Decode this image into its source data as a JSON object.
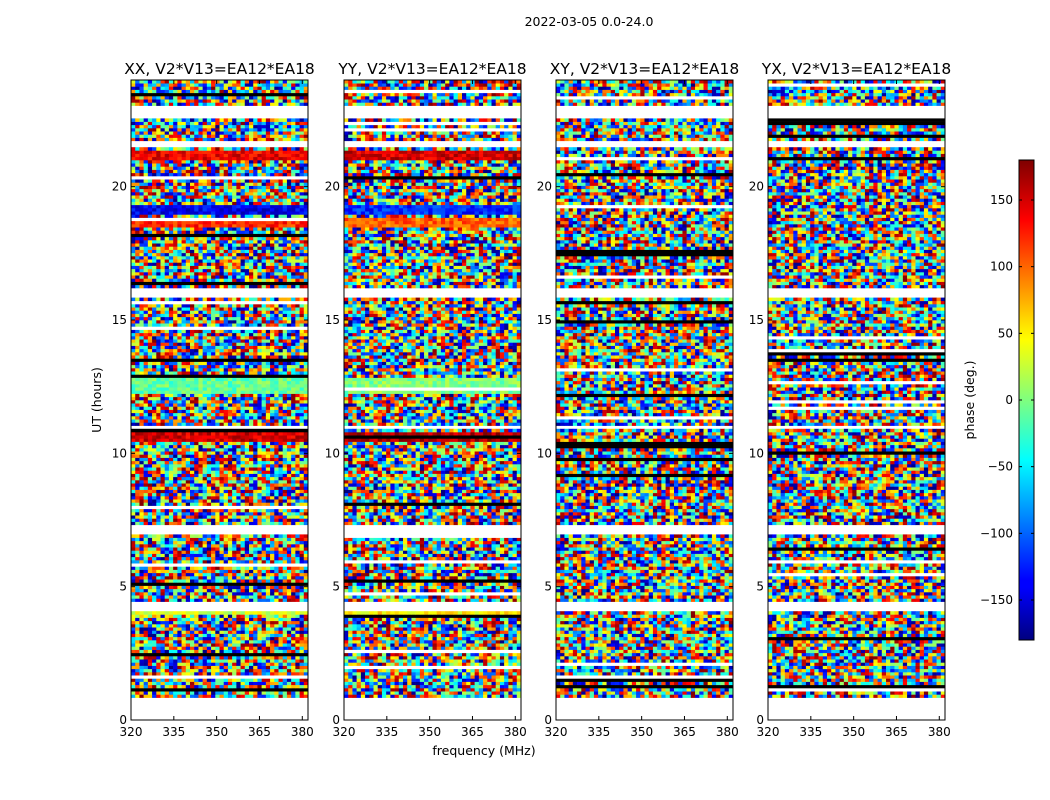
{
  "chart_data": {
    "type": "heatmap",
    "suptitle": "2022-03-05 0.0-24.0",
    "xlabel": "frequency (MHz)",
    "ylabel": "UT (hours)",
    "xlim": [
      320,
      382
    ],
    "ylim": [
      0,
      24
    ],
    "xticks": [
      "320",
      "335",
      "350",
      "365",
      "380"
    ],
    "yticks": [
      "0",
      "5",
      "10",
      "15",
      "20"
    ],
    "panels": [
      {
        "title": "XX, V2*V13=EA12*EA18"
      },
      {
        "title": "YY, V2*V13=EA12*EA18"
      },
      {
        "title": "XY, V2*V13=EA12*EA18"
      },
      {
        "title": "YX, V2*V13=EA12*EA18"
      }
    ],
    "colorbar": {
      "label": "phase (deg.)",
      "range": [
        -180,
        180
      ],
      "ticks": [
        "150",
        "100",
        "50",
        "0",
        "−50",
        "−100",
        "−150"
      ],
      "colormap": "jet"
    },
    "data_gaps_ut_hours": [
      [
        0.0,
        0.8
      ],
      [
        4.1,
        4.4
      ],
      [
        7.0,
        7.3
      ],
      [
        10.9,
        11.1
      ],
      [
        15.9,
        16.2
      ],
      [
        21.5,
        21.7
      ],
      [
        22.6,
        23.0
      ]
    ],
    "coherent_bands_ut_hours": {
      "XX": [
        [
          21.0,
          21.3,
          140
        ],
        [
          19.0,
          19.3,
          -140
        ],
        [
          18.5,
          18.8,
          120
        ],
        [
          12.2,
          12.9,
          -10
        ],
        [
          10.5,
          10.8,
          150
        ],
        [
          4.0,
          4.1,
          30
        ]
      ],
      "YY": [
        [
          21.0,
          21.3,
          150
        ],
        [
          19.0,
          19.3,
          -120
        ],
        [
          18.5,
          18.8,
          100
        ],
        [
          12.2,
          12.9,
          0
        ],
        [
          10.5,
          10.8,
          160
        ],
        [
          4.0,
          4.1,
          50
        ]
      ],
      "XY": [],
      "YX": []
    }
  }
}
